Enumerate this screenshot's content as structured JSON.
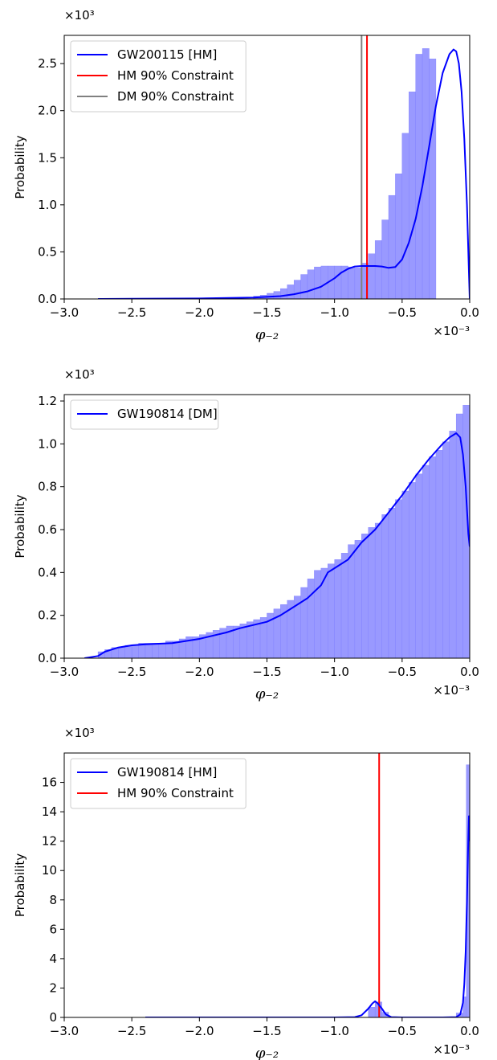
{
  "chart_data": [
    {
      "type": "histogram",
      "xlabel": "φ₋₂",
      "ylabel": "Probability",
      "x_multiplier": "×10⁻³",
      "y_multiplier": "×10³",
      "xlim": [
        -3.0,
        0.0
      ],
      "ylim": [
        0,
        2.8
      ],
      "x_ticks": [
        -3.0,
        -2.5,
        -2.0,
        -1.5,
        -1.0,
        -0.5,
        0.0
      ],
      "x_tick_labels": [
        "−3.0",
        "−2.5",
        "−2.0",
        "−1.5",
        "−1.0",
        "−0.5",
        "0.0"
      ],
      "y_ticks": [
        0.0,
        0.5,
        1.0,
        1.5,
        2.0,
        2.5
      ],
      "y_tick_labels": [
        "0.0",
        "0.5",
        "1.0",
        "1.5",
        "2.0",
        "2.5"
      ],
      "legend": [
        {
          "label": "GW200115 [HM]",
          "color": "#0000ff"
        },
        {
          "label": "HM 90% Constraint",
          "color": "#ff0000"
        },
        {
          "label": "DM 90% Constraint",
          "color": "#808080"
        }
      ],
      "vlines": [
        {
          "x": -0.76,
          "color": "#ff0000"
        },
        {
          "x": -0.8,
          "color": "#808080"
        }
      ],
      "bar_color": "#9999ff",
      "bars": {
        "x0": -1.6,
        "width": 0.05,
        "heights": [
          0.03,
          0.04,
          0.06,
          0.08,
          0.11,
          0.15,
          0.2,
          0.26,
          0.31,
          0.34,
          0.35,
          0.35,
          0.35,
          0.35,
          0.34,
          0.33,
          0.38,
          0.48,
          0.62,
          0.84,
          1.1,
          1.33,
          1.76,
          2.2,
          2.6,
          2.66,
          2.55
        ]
      },
      "kde": {
        "x": [
          -2.75,
          -2.5,
          -2.0,
          -1.6,
          -1.4,
          -1.3,
          -1.2,
          -1.1,
          -1.0,
          -0.95,
          -0.9,
          -0.85,
          -0.8,
          -0.75,
          -0.7,
          -0.65,
          -0.6,
          -0.55,
          -0.5,
          -0.45,
          -0.4,
          -0.35,
          -0.3,
          -0.25,
          -0.2,
          -0.15,
          -0.12,
          -0.1,
          -0.08,
          -0.06,
          -0.04,
          -0.02,
          0.0
        ],
        "y": [
          0.0,
          0.002,
          0.005,
          0.015,
          0.03,
          0.05,
          0.08,
          0.13,
          0.22,
          0.28,
          0.32,
          0.345,
          0.35,
          0.35,
          0.35,
          0.345,
          0.33,
          0.34,
          0.42,
          0.6,
          0.85,
          1.2,
          1.62,
          2.05,
          2.4,
          2.6,
          2.65,
          2.63,
          2.5,
          2.2,
          1.7,
          1.0,
          0.0
        ]
      }
    },
    {
      "type": "histogram",
      "xlabel": "φ₋₂",
      "ylabel": "Probability",
      "x_multiplier": "×10⁻³",
      "y_multiplier": "×10³",
      "xlim": [
        -3.0,
        0.0
      ],
      "ylim": [
        0,
        1.23
      ],
      "x_ticks": [
        -3.0,
        -2.5,
        -2.0,
        -1.5,
        -1.0,
        -0.5,
        0.0
      ],
      "x_tick_labels": [
        "−3.0",
        "−2.5",
        "−2.0",
        "−1.5",
        "−1.0",
        "−0.5",
        "0.0"
      ],
      "y_ticks": [
        0.0,
        0.2,
        0.4,
        0.6,
        0.8,
        1.0,
        1.2
      ],
      "y_tick_labels": [
        "0.0",
        "0.2",
        "0.4",
        "0.6",
        "0.8",
        "1.0",
        "1.2"
      ],
      "legend": [
        {
          "label": "GW190814 [DM]",
          "color": "#0000ff"
        }
      ],
      "vlines": [],
      "bar_color": "#9999ff",
      "bars": {
        "x0": -2.75,
        "width": 0.05,
        "heights": [
          0.03,
          0.04,
          0.05,
          0.05,
          0.06,
          0.06,
          0.07,
          0.07,
          0.07,
          0.07,
          0.08,
          0.08,
          0.09,
          0.1,
          0.1,
          0.11,
          0.12,
          0.13,
          0.14,
          0.15,
          0.15,
          0.16,
          0.17,
          0.18,
          0.19,
          0.21,
          0.23,
          0.25,
          0.27,
          0.29,
          0.33,
          0.37,
          0.41,
          0.42,
          0.44,
          0.46,
          0.49,
          0.53,
          0.55,
          0.58,
          0.61,
          0.63,
          0.67,
          0.7,
          0.74,
          0.78,
          0.82,
          0.86,
          0.9,
          0.94,
          0.97,
          1.01,
          1.06,
          1.14,
          1.18
        ]
      },
      "kde": {
        "x": [
          -2.85,
          -2.75,
          -2.7,
          -2.6,
          -2.5,
          -2.4,
          -2.2,
          -2.0,
          -1.8,
          -1.7,
          -1.6,
          -1.5,
          -1.4,
          -1.3,
          -1.2,
          -1.1,
          -1.05,
          -1.0,
          -0.9,
          -0.8,
          -0.7,
          -0.6,
          -0.5,
          -0.4,
          -0.3,
          -0.2,
          -0.15,
          -0.1,
          -0.07,
          -0.05,
          -0.03,
          -0.01,
          0.0
        ],
        "y": [
          0.0,
          0.01,
          0.03,
          0.05,
          0.06,
          0.065,
          0.07,
          0.09,
          0.12,
          0.14,
          0.155,
          0.17,
          0.2,
          0.24,
          0.28,
          0.34,
          0.4,
          0.42,
          0.46,
          0.54,
          0.6,
          0.68,
          0.76,
          0.85,
          0.93,
          1.0,
          1.03,
          1.05,
          1.03,
          0.95,
          0.8,
          0.58,
          0.52
        ]
      }
    },
    {
      "type": "histogram",
      "xlabel": "φ₋₂",
      "ylabel": "Probability",
      "x_multiplier": "×10⁻³",
      "y_multiplier": "×10³",
      "xlim": [
        -3.0,
        0.0
      ],
      "ylim": [
        0,
        18.0
      ],
      "x_ticks": [
        -3.0,
        -2.5,
        -2.0,
        -1.5,
        -1.0,
        -0.5,
        0.0
      ],
      "x_tick_labels": [
        "−3.0",
        "−2.5",
        "−2.0",
        "−1.5",
        "−1.0",
        "−0.5",
        "0.0"
      ],
      "y_ticks": [
        0,
        2,
        4,
        6,
        8,
        10,
        12,
        14,
        16
      ],
      "y_tick_labels": [
        "0",
        "2",
        "4",
        "6",
        "8",
        "10",
        "12",
        "14",
        "16"
      ],
      "legend": [
        {
          "label": "GW190814 [HM]",
          "color": "#0000ff"
        },
        {
          "label": "HM 90% Constraint",
          "color": "#ff0000"
        }
      ],
      "vlines": [
        {
          "x": -0.67,
          "color": "#ff0000"
        }
      ],
      "bar_color": "#9999ff",
      "bars_sparse": [
        {
          "x0": -0.75,
          "w": 0.05,
          "h": 0.7
        },
        {
          "x0": -0.7,
          "w": 0.05,
          "h": 1.05
        },
        {
          "x0": -0.65,
          "w": 0.05,
          "h": 0.35
        },
        {
          "x0": -0.1,
          "w": 0.05,
          "h": 0.3
        },
        {
          "x0": -0.05,
          "w": 0.025,
          "h": 1.4
        },
        {
          "x0": -0.025,
          "w": 0.025,
          "h": 17.2
        }
      ],
      "kde": {
        "x": [
          -2.4,
          -1.5,
          -1.0,
          -0.85,
          -0.8,
          -0.75,
          -0.72,
          -0.7,
          -0.68,
          -0.65,
          -0.62,
          -0.58,
          -0.5,
          -0.2,
          -0.1,
          -0.07,
          -0.05,
          -0.04,
          -0.03,
          -0.02,
          -0.012,
          -0.006,
          0.0
        ],
        "y": [
          0.0,
          0.0,
          0.0,
          0.02,
          0.15,
          0.6,
          0.95,
          1.1,
          0.95,
          0.6,
          0.2,
          0.02,
          0.0,
          0.0,
          0.02,
          0.2,
          1.0,
          2.3,
          4.5,
          8.0,
          11.5,
          13.7,
          12.0
        ]
      }
    }
  ]
}
